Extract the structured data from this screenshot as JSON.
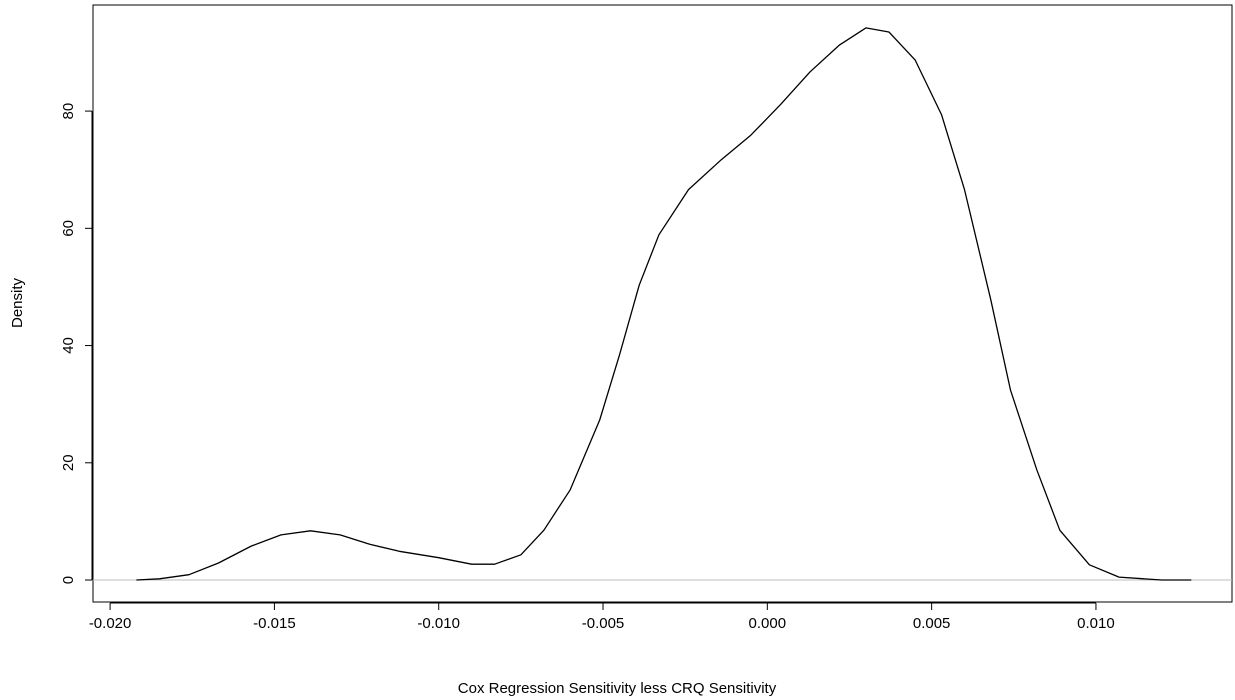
{
  "chart_data": {
    "type": "line",
    "x_label": "Cox Regression Sensitivity less CRQ Sensitivity",
    "y_label": "Density",
    "x": [
      -0.0192,
      -0.0185,
      -0.0176,
      -0.0167,
      -0.0157,
      -0.0148,
      -0.0139,
      -0.013,
      -0.0121,
      -0.0112,
      -0.01,
      -0.009,
      -0.0083,
      -0.0075,
      -0.0068,
      -0.006,
      -0.0051,
      -0.0045,
      -0.0039,
      -0.0033,
      -0.0024,
      -0.0014,
      -0.0005,
      0.0004,
      0.0013,
      0.0022,
      0.003,
      0.0037,
      0.0045,
      0.0053,
      0.006,
      0.0068,
      0.0074,
      0.0082,
      0.0089,
      0.0098,
      0.0107,
      0.012,
      0.0129
    ],
    "series": [
      {
        "color": "#000000",
        "values": [
          0,
          0.2,
          0.9,
          2.9,
          5.8,
          7.7,
          8.4,
          7.7,
          6.1,
          4.9,
          3.8,
          2.7,
          2.7,
          4.3,
          8.5,
          15.4,
          27.3,
          38.4,
          50.3,
          58.9,
          66.6,
          71.7,
          75.9,
          81.1,
          86.7,
          91.3,
          94.2,
          93.5,
          88.7,
          79.4,
          66.6,
          47.8,
          32.4,
          18.8,
          8.5,
          2.6,
          0.5,
          0,
          0
        ]
      }
    ],
    "xlim": [
      -0.02052,
      0.01414
    ],
    "ylim": [
      -3.75,
      98.1
    ],
    "xticks": [
      {
        "value": -0.02,
        "label": "-0.020"
      },
      {
        "value": -0.015,
        "label": "-0.015"
      },
      {
        "value": -0.01,
        "label": "-0.010"
      },
      {
        "value": -0.005,
        "label": "-0.005"
      },
      {
        "value": 0,
        "label": "0.000"
      },
      {
        "value": 0.005,
        "label": "0.005"
      },
      {
        "value": 0.01,
        "label": "0.010"
      }
    ],
    "yticks": [
      0,
      20,
      40,
      60,
      80
    ],
    "zero_line_color": "#bebebe"
  }
}
